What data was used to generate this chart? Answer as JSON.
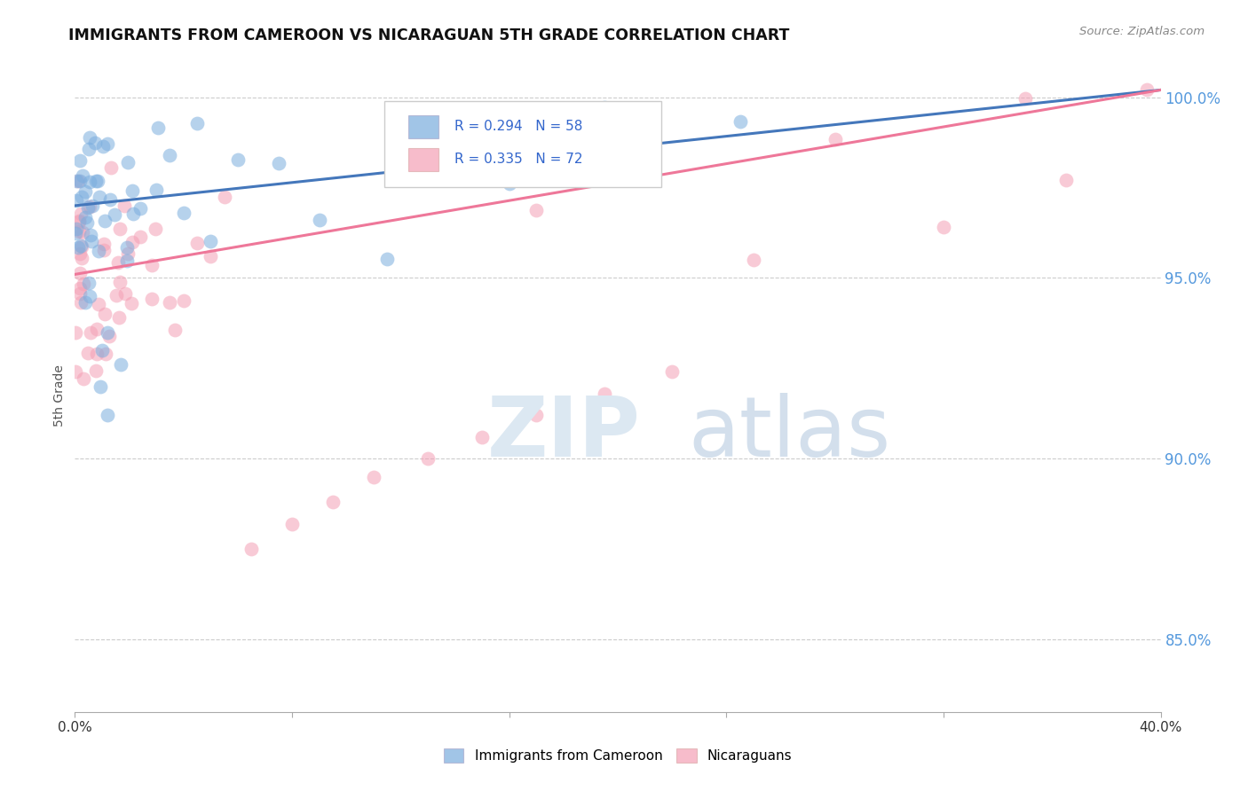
{
  "title": "IMMIGRANTS FROM CAMEROON VS NICARAGUAN 5TH GRADE CORRELATION CHART",
  "source_text": "Source: ZipAtlas.com",
  "ylabel": "5th Grade",
  "x_min": 0.0,
  "x_max": 0.4,
  "y_min": 0.83,
  "y_max": 1.005,
  "x_ticks": [
    0.0,
    0.08,
    0.16,
    0.24,
    0.32,
    0.4
  ],
  "x_tick_labels": [
    "0.0%",
    "",
    "",
    "",
    "",
    "40.0%"
  ],
  "y_ticks": [
    0.85,
    0.9,
    0.95,
    1.0
  ],
  "y_tick_labels": [
    "85.0%",
    "90.0%",
    "95.0%",
    "100.0%"
  ],
  "blue_R": 0.294,
  "blue_N": 58,
  "pink_R": 0.335,
  "pink_N": 72,
  "blue_color": "#7aadde",
  "pink_color": "#f4a0b5",
  "blue_line_color": "#4477bb",
  "pink_line_color": "#ee7799",
  "legend_label_blue": "Immigrants from Cameroon",
  "legend_label_pink": "Nicaraguans",
  "blue_line_x0": 0.0,
  "blue_line_y0": 0.97,
  "blue_line_x1": 0.4,
  "blue_line_y1": 1.002,
  "pink_line_x0": 0.0,
  "pink_line_y0": 0.951,
  "pink_line_x1": 0.4,
  "pink_line_y1": 1.002
}
